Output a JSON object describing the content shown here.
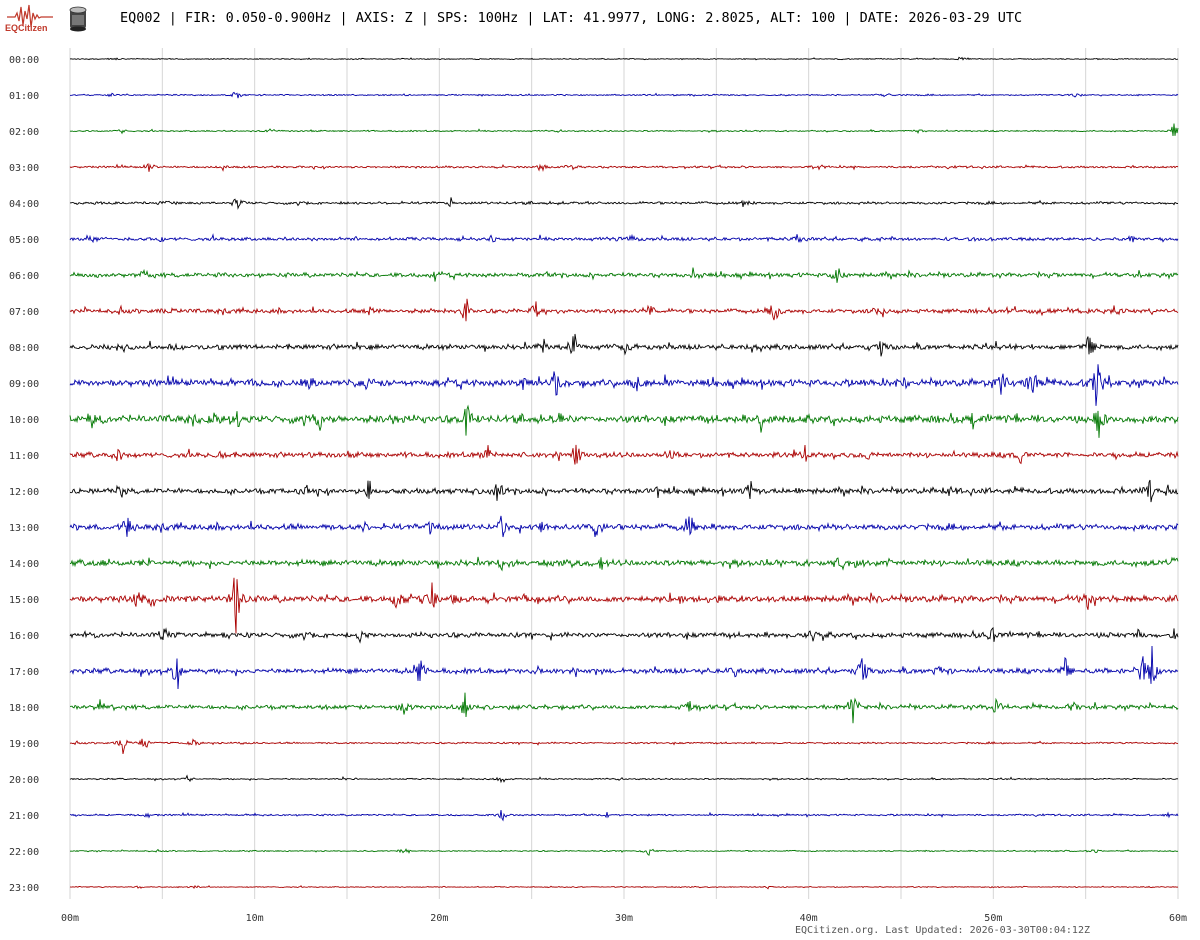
{
  "header": {
    "logo_text": "EQCitizen",
    "title": "EQ002 | FIR: 0.050-0.900Hz | AXIS: Z | SPS: 100Hz | LAT: 41.9977, LONG: 2.8025, ALT: 100 | DATE: 2026-03-29 UTC"
  },
  "footer": {
    "text": "EQCitizen.org. Last Updated: 2026-03-30T00:04:12Z"
  },
  "chart_data": {
    "type": "line",
    "title": "EQ002 | FIR: 0.050-0.900Hz | AXIS: Z | SPS: 100Hz | LAT: 41.9977, LONG: 2.8025, ALT: 100 | DATE: 2026-03-29 UTC",
    "x_ticks": [
      "00m",
      "10m",
      "20m",
      "30m",
      "40m",
      "50m",
      "60m"
    ],
    "xlim": [
      0,
      60
    ],
    "grid": true,
    "colors": [
      "#000000",
      "#0000aa",
      "#007700",
      "#aa0000"
    ],
    "rows": [
      {
        "label": "00:00",
        "noise": 0.6,
        "events": [
          [
            48.2,
            3
          ],
          [
            2.5,
            2
          ]
        ]
      },
      {
        "label": "01:00",
        "noise": 0.8,
        "events": [
          [
            9,
            6
          ],
          [
            54.5,
            4
          ],
          [
            2.2,
            3
          ],
          [
            44,
            3
          ]
        ]
      },
      {
        "label": "02:00",
        "noise": 0.8,
        "events": [
          [
            10.8,
            5
          ],
          [
            59.8,
            14
          ],
          [
            45.8,
            4
          ],
          [
            2.8,
            3
          ]
        ]
      },
      {
        "label": "03:00",
        "noise": 1.2,
        "events": [
          [
            4.3,
            10
          ],
          [
            25.5,
            7
          ],
          [
            27.1,
            7
          ],
          [
            40.7,
            5
          ],
          [
            8.3,
            3
          ]
        ]
      },
      {
        "label": "04:00",
        "noise": 1.5,
        "events": [
          [
            9.1,
            13
          ],
          [
            20.6,
            6
          ],
          [
            36.4,
            6
          ],
          [
            5.1,
            4
          ]
        ]
      },
      {
        "label": "05:00",
        "noise": 2.0,
        "events": [
          [
            57.6,
            8
          ],
          [
            1.2,
            4
          ],
          [
            4.9,
            5
          ],
          [
            30.3,
            6
          ],
          [
            39.5,
            5
          ],
          [
            22.9,
            4
          ]
        ]
      },
      {
        "label": "06:00",
        "noise": 2.5,
        "events": [
          [
            41.5,
            25
          ],
          [
            33.8,
            12
          ],
          [
            19.7,
            10
          ],
          [
            4,
            5
          ],
          [
            1.4,
            5
          ],
          [
            8.5,
            4
          ]
        ]
      },
      {
        "label": "07:00",
        "noise": 2.5,
        "events": [
          [
            38.1,
            22
          ],
          [
            21.4,
            20
          ],
          [
            25.2,
            15
          ],
          [
            31.4,
            15
          ],
          [
            43.9,
            13
          ],
          [
            56.5,
            10
          ],
          [
            5.5,
            6
          ],
          [
            16.3,
            6
          ]
        ]
      },
      {
        "label": "08:00",
        "noise": 3.0,
        "events": [
          [
            27.3,
            20
          ],
          [
            55.2,
            18
          ],
          [
            25.6,
            12
          ],
          [
            36.9,
            12
          ],
          [
            43.9,
            14
          ],
          [
            15.5,
            8
          ],
          [
            5.7,
            8
          ],
          [
            30.1,
            8
          ]
        ]
      },
      {
        "label": "09:00",
        "noise": 4.0,
        "events": [
          [
            55.6,
            55
          ],
          [
            52.1,
            30
          ],
          [
            50.5,
            22
          ],
          [
            26.3,
            18
          ],
          [
            24.7,
            16
          ],
          [
            9.7,
            10
          ],
          [
            16,
            10
          ],
          [
            30.7,
            12
          ],
          [
            45.2,
            10
          ],
          [
            13,
            8
          ]
        ]
      },
      {
        "label": "10:00",
        "noise": 4.5,
        "events": [
          [
            21.5,
            32
          ],
          [
            1.2,
            14
          ],
          [
            13.5,
            14
          ],
          [
            55.7,
            26
          ],
          [
            48.8,
            10
          ],
          [
            9.1,
            10
          ],
          [
            37.4,
            12
          ],
          [
            26.5,
            10
          ],
          [
            7.8,
            8
          ],
          [
            17.4,
            10
          ]
        ]
      },
      {
        "label": "11:00",
        "noise": 3.0,
        "events": [
          [
            2.6,
            12
          ],
          [
            8.1,
            10
          ],
          [
            22.6,
            15
          ],
          [
            27.4,
            12
          ],
          [
            39.8,
            16
          ],
          [
            51.5,
            10
          ],
          [
            43.2,
            6
          ],
          [
            32.5,
            6
          ]
        ]
      },
      {
        "label": "12:00",
        "noise": 3.2,
        "events": [
          [
            16.2,
            16
          ],
          [
            23.1,
            16
          ],
          [
            36.8,
            18
          ],
          [
            58.5,
            22
          ],
          [
            12.7,
            8
          ],
          [
            31.8,
            8
          ],
          [
            2.6,
            6
          ],
          [
            47.6,
            7
          ]
        ]
      },
      {
        "label": "13:00",
        "noise": 3.5,
        "events": [
          [
            28.5,
            22
          ],
          [
            33.5,
            32
          ],
          [
            3.1,
            20
          ],
          [
            23.4,
            15
          ],
          [
            25.6,
            8
          ],
          [
            19.5,
            8
          ],
          [
            15.9,
            6
          ]
        ]
      },
      {
        "label": "14:00",
        "noise": 3.5,
        "events": [
          [
            23.4,
            10
          ],
          [
            59.8,
            12
          ],
          [
            41.6,
            8
          ],
          [
            28.8,
            8
          ],
          [
            1.7,
            6
          ]
        ]
      },
      {
        "label": "15:00",
        "noise": 3.8,
        "events": [
          [
            9,
            50
          ],
          [
            19.6,
            28
          ],
          [
            17.7,
            20
          ],
          [
            3.7,
            12
          ],
          [
            20.9,
            8
          ],
          [
            4.5,
            10
          ],
          [
            24.6,
            8
          ],
          [
            55.1,
            10
          ]
        ]
      },
      {
        "label": "16:00",
        "noise": 3.0,
        "events": [
          [
            15.7,
            12
          ],
          [
            5.1,
            8
          ],
          [
            40.2,
            10
          ],
          [
            49.9,
            12
          ],
          [
            57.9,
            10
          ],
          [
            59.8,
            8
          ]
        ]
      },
      {
        "label": "17:00",
        "noise": 3.0,
        "events": [
          [
            42.9,
            38
          ],
          [
            58.1,
            40
          ],
          [
            58.6,
            26
          ],
          [
            5.8,
            30
          ],
          [
            18.9,
            30
          ],
          [
            53.9,
            16
          ],
          [
            47.1,
            10
          ],
          [
            25.3,
            8
          ],
          [
            36,
            8
          ]
        ]
      },
      {
        "label": "18:00",
        "noise": 2.5,
        "events": [
          [
            42.4,
            28
          ],
          [
            1.7,
            14
          ],
          [
            21.4,
            20
          ],
          [
            18.1,
            14
          ],
          [
            50.2,
            10
          ],
          [
            54.4,
            8
          ],
          [
            33.5,
            8
          ]
        ]
      },
      {
        "label": "19:00",
        "noise": 1.0,
        "events": [
          [
            2.9,
            20
          ],
          [
            4,
            12
          ],
          [
            6.7,
            7
          ],
          [
            9.4,
            5
          ]
        ]
      },
      {
        "label": "20:00",
        "noise": 0.8,
        "events": [
          [
            23.4,
            5
          ],
          [
            6.4,
            5
          ],
          [
            14.8,
            3
          ]
        ]
      },
      {
        "label": "21:00",
        "noise": 1.0,
        "events": [
          [
            23.4,
            9
          ],
          [
            4.2,
            5
          ],
          [
            29.1,
            4
          ],
          [
            59.4,
            3
          ]
        ]
      },
      {
        "label": "22:00",
        "noise": 0.7,
        "events": [
          [
            31.3,
            9
          ],
          [
            18.1,
            5
          ],
          [
            55.5,
            3
          ]
        ]
      },
      {
        "label": "23:00",
        "noise": 0.6,
        "events": [
          [
            37.8,
            2
          ],
          [
            6.8,
            2
          ],
          [
            3.7,
            2
          ]
        ]
      }
    ]
  }
}
